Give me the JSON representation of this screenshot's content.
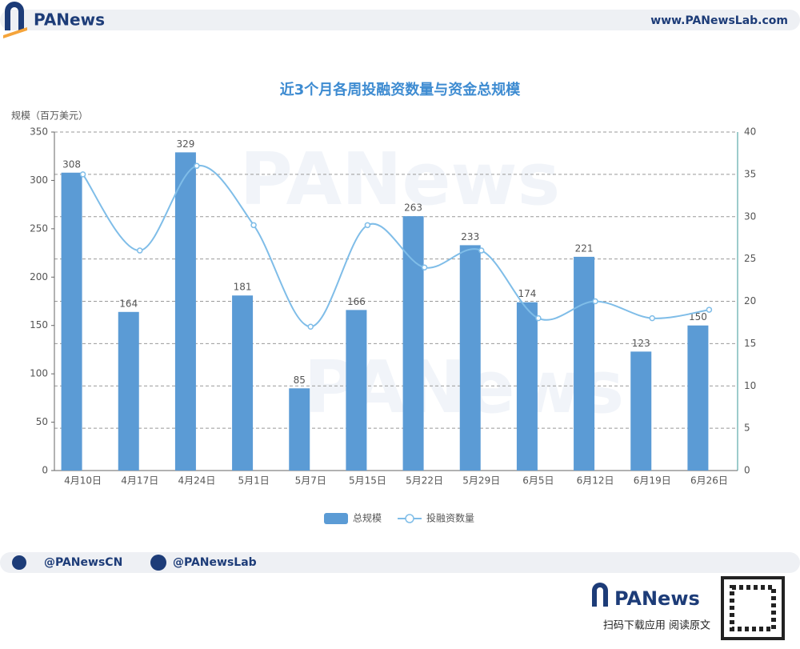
{
  "branding": {
    "logo": "PANews",
    "website": "www.PANewsLab.com",
    "twitter": "@PANewsCN",
    "facebook": "@PANewsLab",
    "footer_logo": "PANews",
    "qr_caption": "扫码下载应用  阅读原文",
    "watermark": "PANews"
  },
  "chart_data": {
    "type": "bar-line",
    "title": "近3个月各周投融资数量与资金总规模",
    "y_label": "规模（百万美元）",
    "categories": [
      "4月10日",
      "4月17日",
      "4月24日",
      "5月1日",
      "5月7日",
      "5月15日",
      "5月22日",
      "5月29日",
      "6月5日",
      "6月12日",
      "6月19日",
      "6月26日"
    ],
    "series": [
      {
        "name": "总规模",
        "type": "bar",
        "color": "#5b9bd5",
        "values": [
          308,
          164,
          329,
          181,
          85,
          166,
          263,
          233,
          174,
          221,
          123,
          150
        ]
      },
      {
        "name": "投融资数量",
        "type": "line",
        "axis": "y2",
        "color": "#7fbde8",
        "values": [
          35,
          26,
          36,
          29,
          17,
          29,
          24,
          26,
          18,
          20,
          18,
          19
        ]
      }
    ],
    "ylim": [
      0,
      350
    ],
    "yticks": [
      0,
      50,
      100,
      150,
      200,
      250,
      300,
      350
    ],
    "y2lim": [
      0,
      40
    ],
    "y2ticks": [
      0,
      5,
      10,
      15,
      20,
      25,
      30,
      35,
      40
    ],
    "grid": true,
    "smooth": true,
    "legend": "bottom"
  }
}
